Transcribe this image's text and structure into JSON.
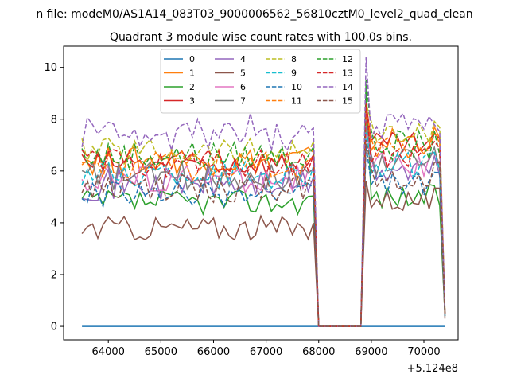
{
  "chart_data": {
    "type": "line",
    "suptitle": "n file: modeM0/AS1A14_083T03_9000006562_56810cztM0_level2_quad_clean",
    "title": "Quadrant 3 module wise count rates with 100.0s bins.",
    "xlabel": "",
    "ylabel": "",
    "x_offset_label": "+5.124e8",
    "xlim": [
      63150,
      70650
    ],
    "ylim": [
      -0.52,
      10.82
    ],
    "xticks": [
      "64000",
      "65000",
      "66000",
      "67000",
      "68000",
      "69000",
      "70000"
    ],
    "yticks": [
      "0",
      "2",
      "4",
      "6",
      "8",
      "10"
    ],
    "legend_position": "upper center",
    "grid": false,
    "series": [
      {
        "name": "0",
        "color": "#1f77b4",
        "dashed": false,
        "base": 0,
        "gap_val": 0,
        "post": 0,
        "amp": 0,
        "peak": 0,
        "end": 0
      },
      {
        "name": "1",
        "color": "#ff7f0e",
        "dashed": false,
        "base": 6.4,
        "gap_val": 0,
        "post": 7.2,
        "amp": 0.35,
        "peak": 8.4,
        "end": 0.5
      },
      {
        "name": "2",
        "color": "#2ca02c",
        "dashed": false,
        "base": 4.8,
        "gap_val": 0,
        "post": 5.0,
        "amp": 0.3,
        "peak": 9.2,
        "end": 0.4
      },
      {
        "name": "3",
        "color": "#d62728",
        "dashed": false,
        "base": 6.3,
        "gap_val": 0,
        "post": 7.0,
        "amp": 0.3,
        "peak": 8.6,
        "end": 0.5
      },
      {
        "name": "4",
        "color": "#9467bd",
        "dashed": false,
        "base": 5.5,
        "gap_val": 0,
        "post": 6.0,
        "amp": 0.4,
        "peak": 7.6,
        "end": 0.5
      },
      {
        "name": "5",
        "color": "#8c564b",
        "dashed": false,
        "base": 3.8,
        "gap_val": 0,
        "post": 4.9,
        "amp": 0.3,
        "peak": 5.6,
        "end": 0.3
      },
      {
        "name": "6",
        "color": "#e377c2",
        "dashed": false,
        "base": 5.7,
        "gap_val": 0,
        "post": 6.2,
        "amp": 0.35,
        "peak": 7.8,
        "end": 0.5
      },
      {
        "name": "7",
        "color": "#7f7f7f",
        "dashed": false,
        "base": 5.8,
        "gap_val": 0,
        "post": 6.4,
        "amp": 0.35,
        "peak": 8.0,
        "end": 0.5
      },
      {
        "name": "8",
        "color": "#bcbd22",
        "dashed": true,
        "base": 6.8,
        "gap_val": 0,
        "post": 7.4,
        "amp": 0.35,
        "peak": 8.6,
        "end": 0.6
      },
      {
        "name": "9",
        "color": "#17becf",
        "dashed": true,
        "base": 5.9,
        "gap_val": 0,
        "post": 6.2,
        "amp": 0.35,
        "peak": 7.8,
        "end": 0.5
      },
      {
        "name": "10",
        "color": "#1f77b4",
        "dashed": true,
        "base": 5.1,
        "gap_val": 0,
        "post": 5.5,
        "amp": 0.3,
        "peak": 7.0,
        "end": 0.4
      },
      {
        "name": "11",
        "color": "#ff7f0e",
        "dashed": true,
        "base": 6.2,
        "gap_val": 0,
        "post": 7.0,
        "amp": 0.35,
        "peak": 8.3,
        "end": 0.5
      },
      {
        "name": "12",
        "color": "#2ca02c",
        "dashed": true,
        "base": 6.6,
        "gap_val": 0,
        "post": 7.0,
        "amp": 0.35,
        "peak": 9.5,
        "end": 0.5
      },
      {
        "name": "13",
        "color": "#d62728",
        "dashed": true,
        "base": 6.3,
        "gap_val": 0,
        "post": 6.6,
        "amp": 0.35,
        "peak": 8.6,
        "end": 0.5
      },
      {
        "name": "14",
        "color": "#9467bd",
        "dashed": true,
        "base": 7.3,
        "gap_val": 0,
        "post": 7.8,
        "amp": 0.35,
        "peak": 10.4,
        "end": 0.6
      },
      {
        "name": "15",
        "color": "#8c564b",
        "dashed": true,
        "base": 5.3,
        "gap_val": 0,
        "post": 5.8,
        "amp": 0.35,
        "peak": 7.2,
        "end": 0.5
      }
    ],
    "x_start": 63500,
    "x_step": 100,
    "gap_start": 67950,
    "gap_end": 68850,
    "x_end": 70400
  }
}
